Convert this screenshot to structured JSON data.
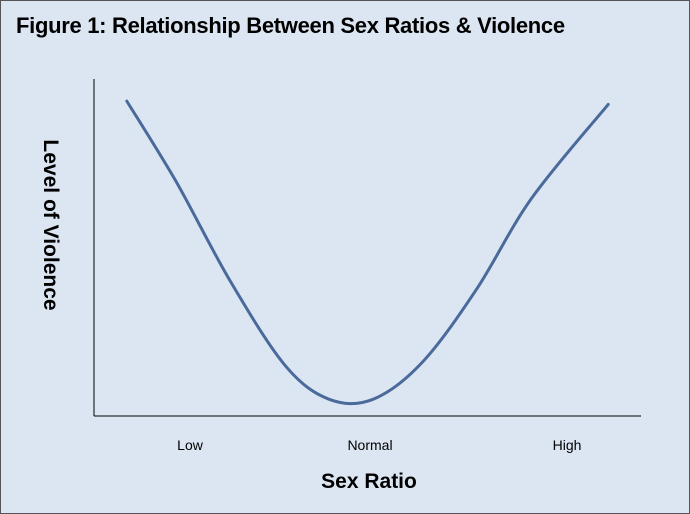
{
  "title": "Figure 1: Relationship Between Sex Ratios & Violence",
  "chart_data": {
    "type": "line",
    "title": "Figure 1: Relationship Between Sex Ratios & Violence",
    "xlabel": "Sex Ratio",
    "ylabel": "Level of Violence",
    "x_tick_labels": [
      "Low",
      "Normal",
      "High"
    ],
    "y_tick_labels": [],
    "grid": false,
    "legend": "none",
    "line_color": "#4a6a9b",
    "background_color": "#dce6f2",
    "xlim": [
      0,
      1
    ],
    "ylim": [
      0,
      1
    ],
    "series": [
      {
        "name": "",
        "points": [
          {
            "x": 0.06,
            "y": 0.94
          },
          {
            "x": 0.15,
            "y": 0.7
          },
          {
            "x": 0.25,
            "y": 0.4
          },
          {
            "x": 0.35,
            "y": 0.15
          },
          {
            "x": 0.43,
            "y": 0.05
          },
          {
            "x": 0.51,
            "y": 0.05
          },
          {
            "x": 0.6,
            "y": 0.16
          },
          {
            "x": 0.7,
            "y": 0.38
          },
          {
            "x": 0.8,
            "y": 0.65
          },
          {
            "x": 0.94,
            "y": 0.93
          }
        ]
      }
    ]
  }
}
